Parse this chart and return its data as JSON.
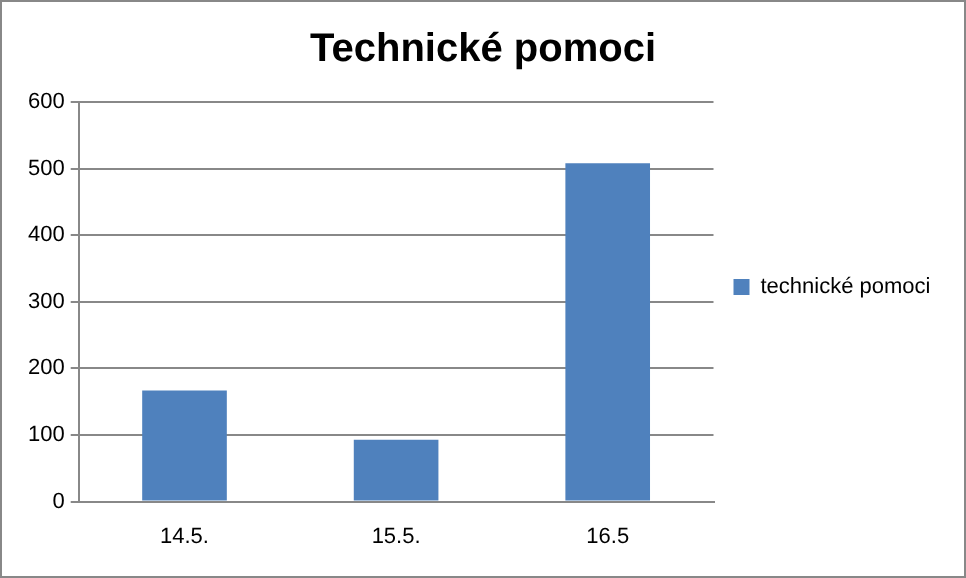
{
  "chart_data": {
    "type": "bar",
    "title": "Technické pomoci",
    "categories": [
      "14.5.",
      "15.5.",
      "16.5"
    ],
    "series": [
      {
        "name": "technické pomoci",
        "color": "#4f81bd",
        "values": [
          167,
          93,
          508
        ]
      }
    ],
    "ylim": [
      0,
      600
    ],
    "yticks": [
      0,
      100,
      200,
      300,
      400,
      500,
      600
    ],
    "grid": "y",
    "legend": "right"
  }
}
